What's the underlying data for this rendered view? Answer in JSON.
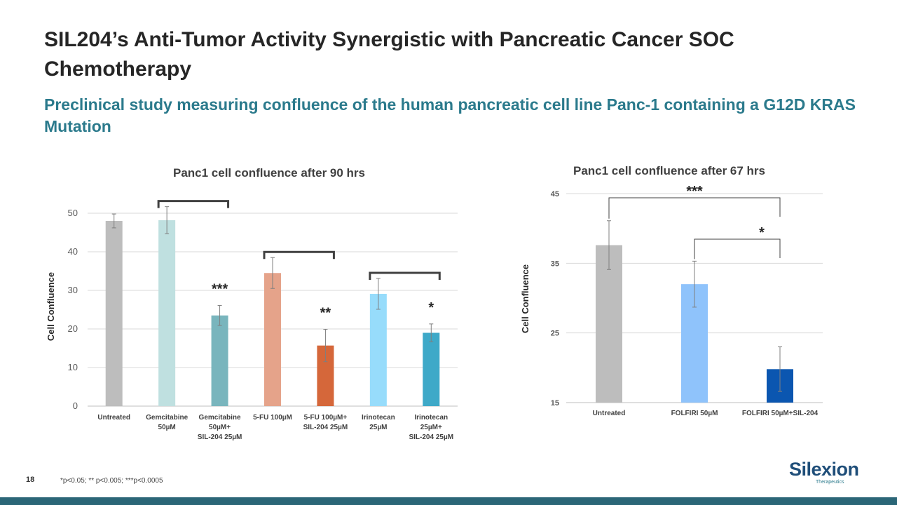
{
  "slide": {
    "title": "SIL204’s Anti-Tumor Activity Synergistic with Pancreatic Cancer SOC Chemotherapy",
    "subtitle": "Preclinical study measuring confluence of the human pancreatic cell line Panc-1 containing a G12D KRAS Mutation",
    "page_number": "18",
    "footnote": "*p<0.05; ** p<0.005; ***p<0.0005",
    "logo": {
      "name": "Silexion",
      "tagline": "Therapeutics"
    }
  },
  "colors": {
    "title": "#262626",
    "subtitle": "#2b7a8c",
    "bar_untreated": "#bdbdbd",
    "bottom_bar": "#2b6677"
  },
  "chart_data": [
    {
      "type": "bar",
      "title": "Panc1 cell confluence after 90 hrs",
      "xlabel": "",
      "ylabel": "Cell Confluence",
      "ylim": [
        0,
        50
      ],
      "yticks": [
        0,
        10,
        20,
        30,
        40,
        50
      ],
      "grid": true,
      "categories": [
        [
          "Untreated"
        ],
        [
          "Gemcitabine",
          "50µM"
        ],
        [
          "Gemcitabine",
          "50µM+",
          "SIL-204 25µM"
        ],
        [
          "5-FU 100µM"
        ],
        [
          "5-FU 100µM+",
          "SIL-204 25µM"
        ],
        [
          "Irinotecan",
          "25µM"
        ],
        [
          "Irinotecan",
          "25µM+",
          "SIL-204 25µM"
        ]
      ],
      "values": [
        48,
        48.2,
        23.5,
        34.5,
        15.7,
        29.1,
        19
      ],
      "errors": [
        1.8,
        3.5,
        2.6,
        4,
        4.2,
        4,
        2.3
      ],
      "colors": [
        "#bdbdbd",
        "#bfe0e0",
        "#79b5bd",
        "#e5a38a",
        "#d5673a",
        "#97dcfb",
        "#3ea9c8"
      ],
      "significance": [
        {
          "bar": 2,
          "label": "***"
        },
        {
          "bar": 4,
          "label": "**"
        },
        {
          "bar": 6,
          "label": "*"
        }
      ],
      "brackets": [
        [
          1,
          2
        ],
        [
          3,
          4
        ],
        [
          5,
          6
        ]
      ]
    },
    {
      "type": "bar",
      "title": "Panc1 cell confluence after 67 hrs",
      "xlabel": "",
      "ylabel": "Cell Confluence",
      "ylim": [
        15,
        45
      ],
      "yticks": [
        15,
        25,
        35,
        45
      ],
      "grid": true,
      "categories": [
        [
          "Untreated"
        ],
        [
          "FOLFIRI 50µM"
        ],
        [
          "FOLFIRI 50µM+SIL-204"
        ]
      ],
      "values": [
        37.6,
        32,
        19.8
      ],
      "errors": [
        3.5,
        3.3,
        3.2
      ],
      "colors": [
        "#bdbdbd",
        "#8fc3fb",
        "#0b56b0"
      ],
      "comparisons": [
        {
          "from": 0,
          "to": 2,
          "label": "***"
        },
        {
          "from": 1,
          "to": 2,
          "label": "*"
        }
      ]
    }
  ]
}
